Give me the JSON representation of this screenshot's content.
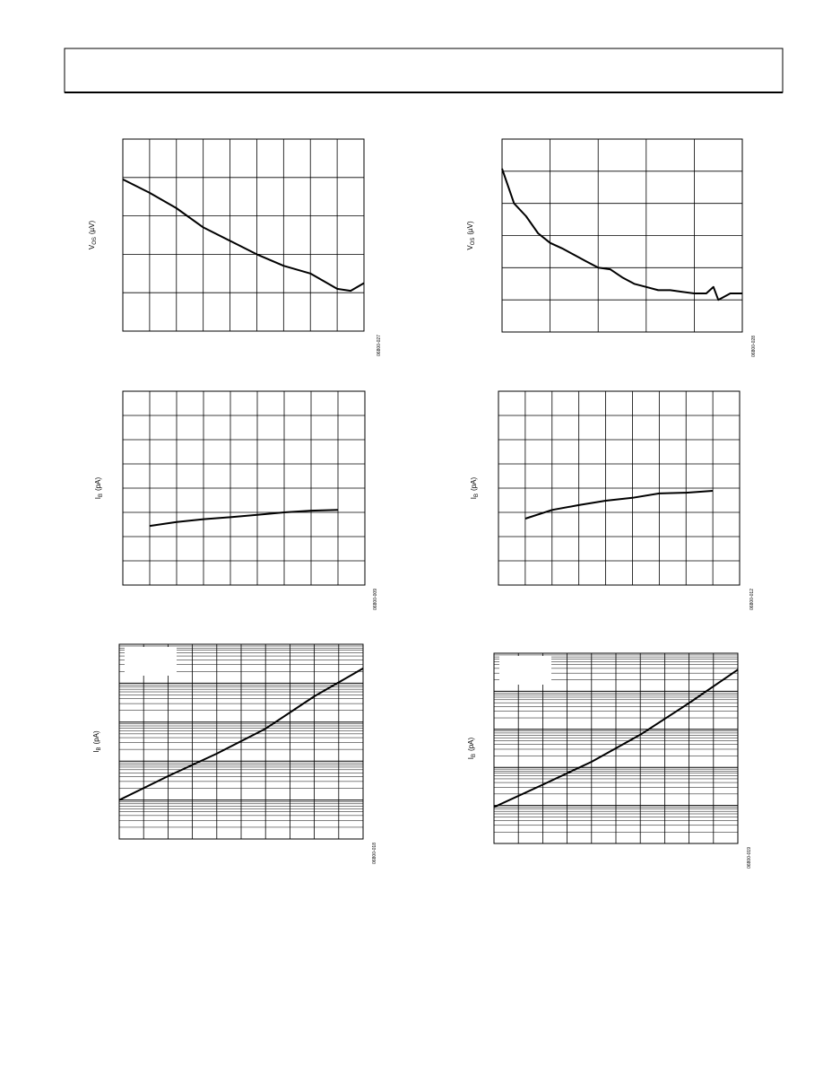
{
  "chart_data": [
    {
      "type": "line",
      "y_label": {
        "symbol": "V",
        "subscript": "OS",
        "unit": "(µV)"
      },
      "figure_id": "06800-027",
      "xlim": [
        0,
        9
      ],
      "ylim": [
        0,
        5
      ],
      "log_scale": false,
      "x": [
        0,
        1,
        2,
        3,
        4,
        5,
        6,
        7,
        8,
        8.5,
        9
      ],
      "values": [
        3.95,
        3.6,
        3.2,
        2.7,
        2.35,
        2.0,
        1.7,
        1.5,
        1.1,
        1.05,
        1.25
      ]
    },
    {
      "type": "line",
      "y_label": {
        "symbol": "V",
        "subscript": "OS",
        "unit": "(µV)"
      },
      "figure_id": "06800-028",
      "xlim": [
        0,
        5
      ],
      "ylim": [
        0,
        6
      ],
      "log_scale": false,
      "x": [
        0,
        0.25,
        0.5,
        0.75,
        1,
        1.25,
        1.5,
        1.75,
        2,
        2.25,
        2.5,
        2.75,
        3,
        3.25,
        3.5,
        3.75,
        4,
        4.25,
        4.4,
        4.5,
        4.75,
        5
      ],
      "values": [
        5.08,
        4.0,
        3.6,
        3.07,
        2.77,
        2.6,
        2.4,
        2.2,
        2.0,
        1.95,
        1.7,
        1.5,
        1.4,
        1.3,
        1.3,
        1.25,
        1.2,
        1.2,
        1.4,
        1.0,
        1.2,
        1.2
      ]
    },
    {
      "type": "line",
      "y_label": {
        "symbol": "I",
        "subscript": "B",
        "unit": "(pA)"
      },
      "figure_id": "06800-009",
      "xlim": [
        0,
        9
      ],
      "ylim": [
        0,
        8
      ],
      "log_scale": false,
      "x": [
        1,
        2,
        3,
        4,
        5,
        6,
        7,
        8
      ],
      "values": [
        2.44,
        2.6,
        2.72,
        2.8,
        2.9,
        3.0,
        3.07,
        3.1
      ]
    },
    {
      "type": "line",
      "y_label": {
        "symbol": "I",
        "subscript": "B",
        "unit": "(pA)"
      },
      "figure_id": "06800-012",
      "xlim": [
        0,
        9
      ],
      "ylim": [
        0,
        8
      ],
      "log_scale": false,
      "x": [
        1,
        2,
        3,
        4,
        5,
        6,
        7,
        8
      ],
      "values": [
        2.74,
        3.1,
        3.3,
        3.48,
        3.6,
        3.78,
        3.81,
        3.89
      ]
    },
    {
      "type": "line",
      "y_label": {
        "symbol": "I",
        "subscript": "B",
        "unit": "(pA)"
      },
      "figure_id": "06800-018",
      "xlim": [
        0,
        10
      ],
      "ylim": [
        1,
        100000
      ],
      "log_scale": true,
      "x": [
        0,
        2,
        4,
        6,
        8,
        10
      ],
      "values": [
        10,
        41,
        155,
        680,
        4600,
        24000
      ]
    },
    {
      "type": "line",
      "y_label": {
        "symbol": "I",
        "subscript": "B",
        "unit": "(pA)"
      },
      "figure_id": "06800-019",
      "xlim": [
        0,
        10
      ],
      "ylim": [
        1,
        100000
      ],
      "log_scale": true,
      "x": [
        0,
        2,
        4,
        6,
        8,
        10
      ],
      "values": [
        9,
        35,
        140,
        720,
        4900,
        37000
      ]
    }
  ]
}
